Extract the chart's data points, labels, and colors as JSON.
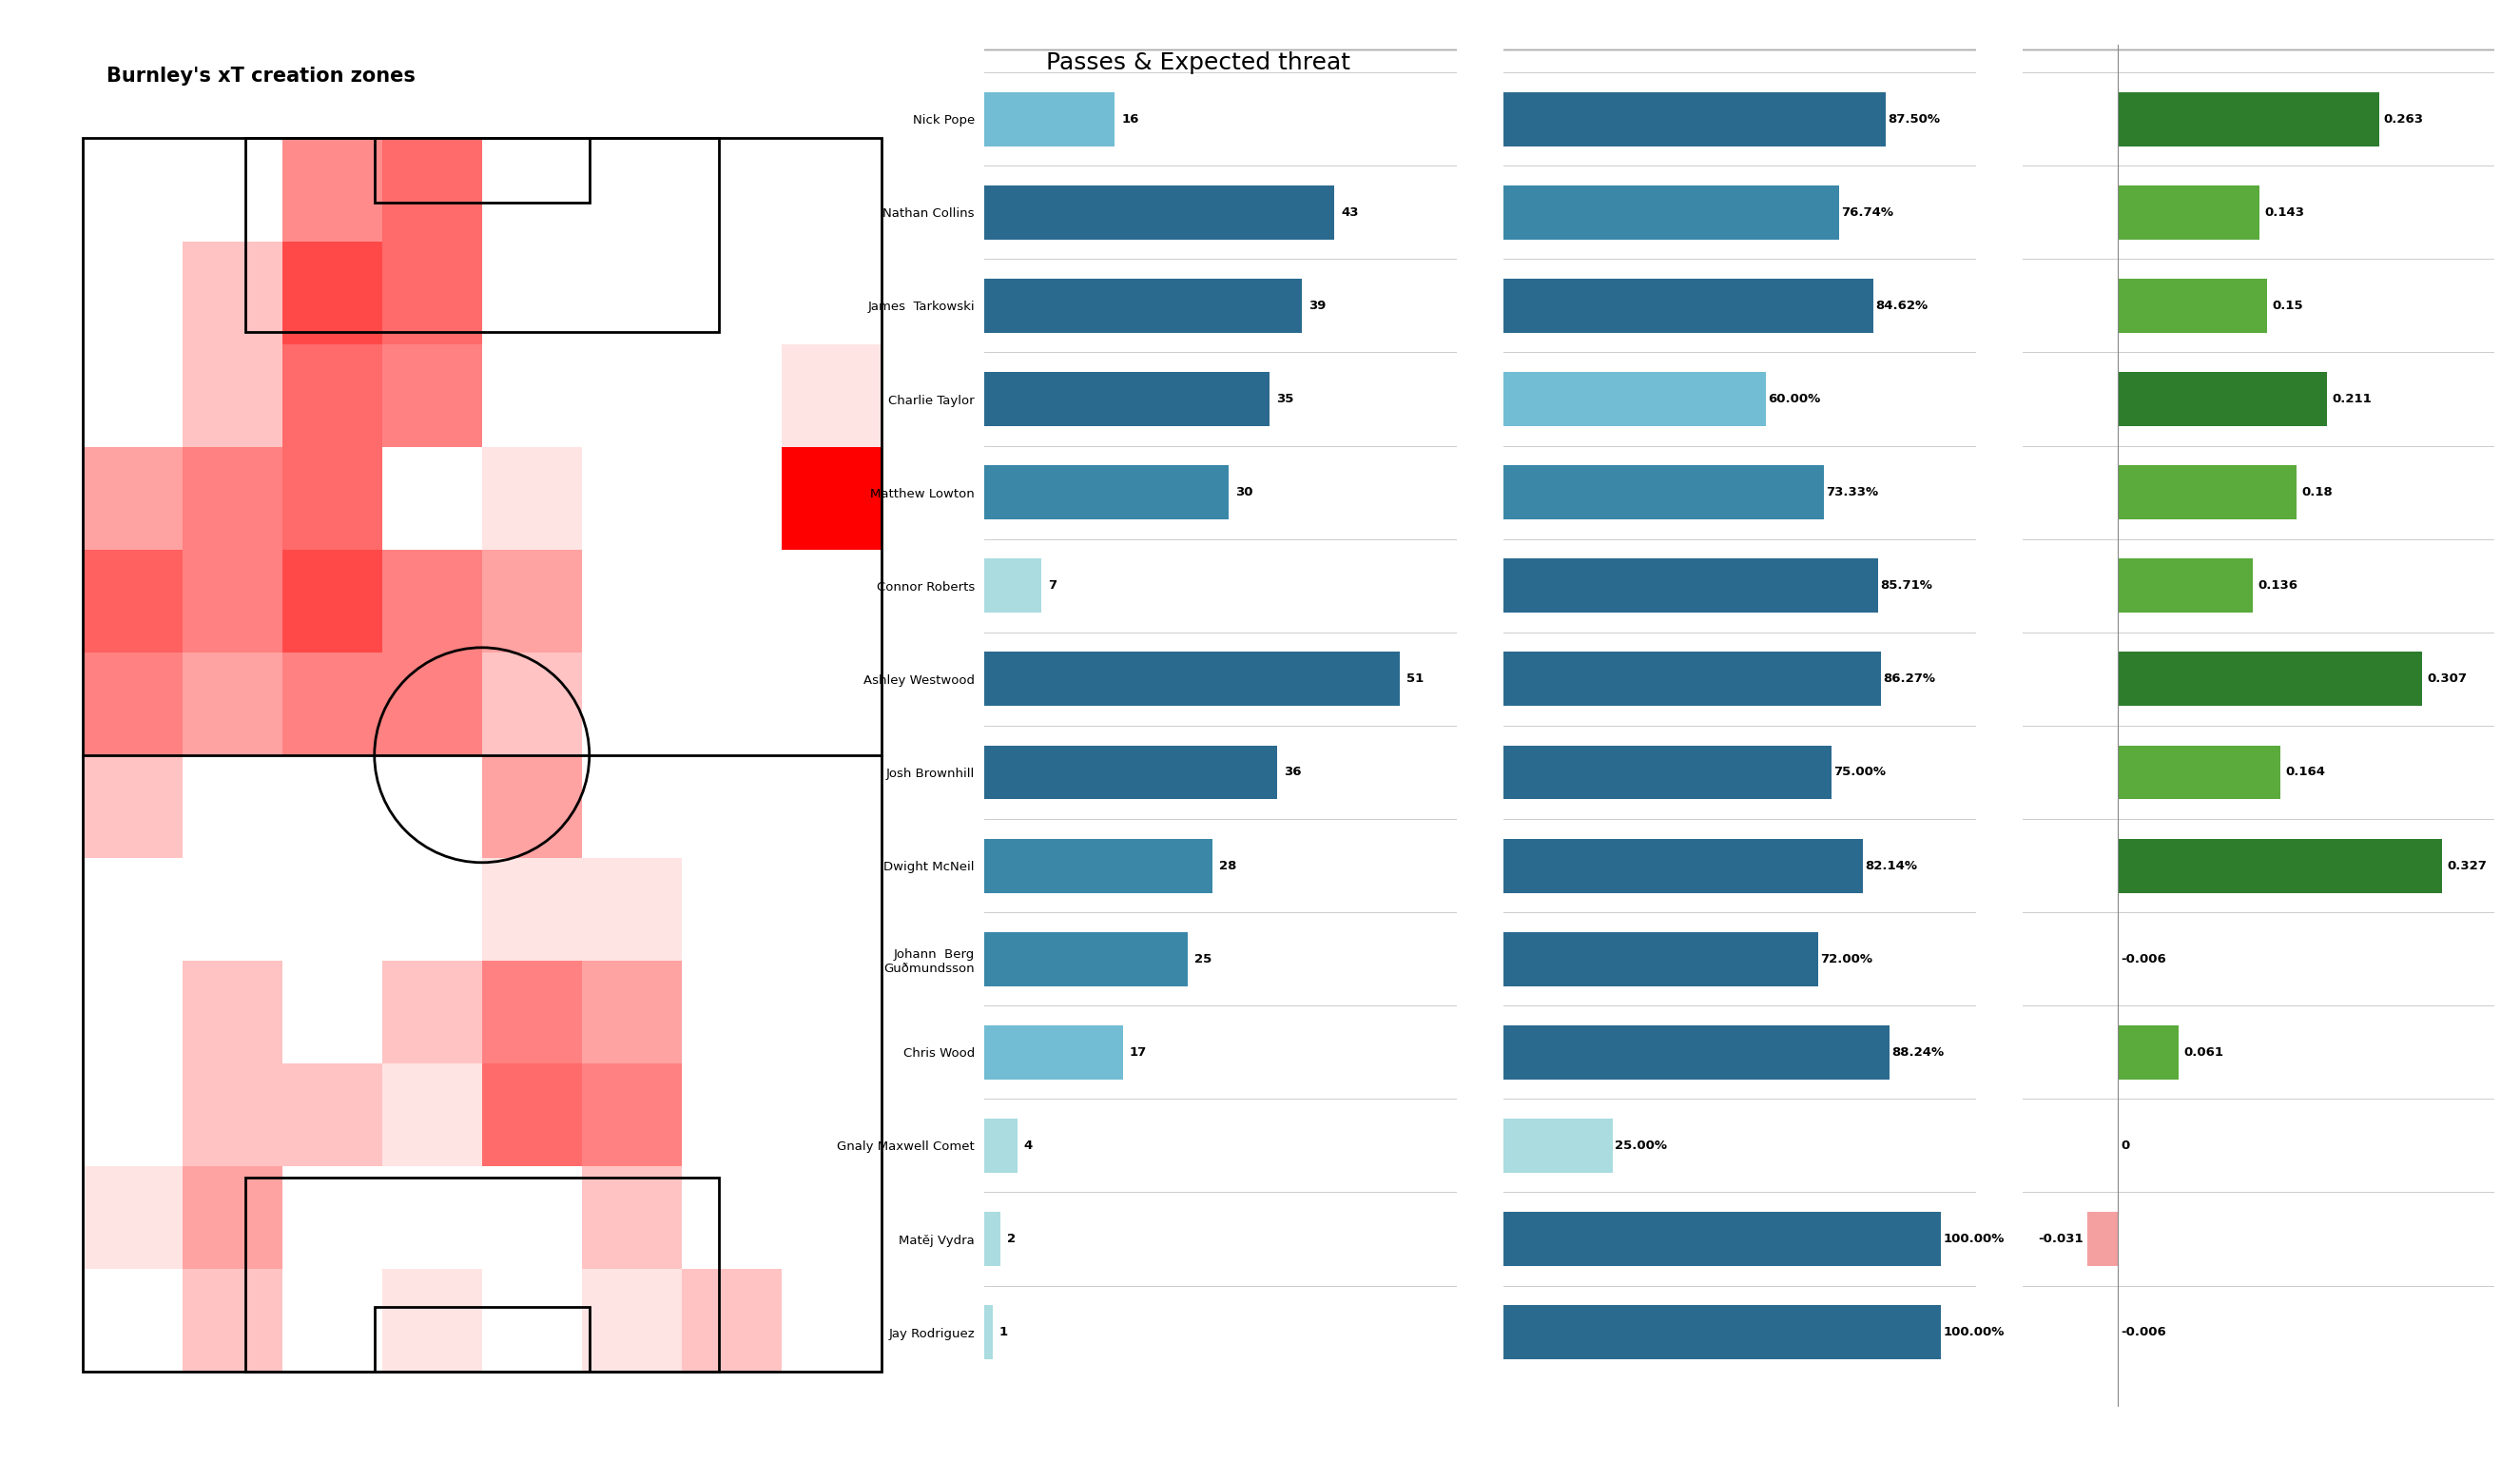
{
  "title_heatmap": "Burnley's xT creation zones",
  "title_bars": "Passes & Expected threat",
  "players": [
    "Nick Pope",
    "Nathan Collins",
    "James  Tarkowski",
    "Charlie Taylor",
    "Matthew Lowton",
    "Connor Roberts",
    "Ashley Westwood",
    "Josh Brownhill",
    "Dwight McNeil",
    "Johann  Berg\nGuðmundsson",
    "Chris Wood",
    "Gnaly Maxwell Comet",
    "Matěj Vydra",
    "Jay Rodriguez"
  ],
  "passes": [
    16,
    43,
    39,
    35,
    30,
    7,
    51,
    36,
    28,
    25,
    17,
    4,
    2,
    1
  ],
  "pass_accuracy": [
    87.5,
    76.74,
    84.62,
    60.0,
    73.33,
    85.71,
    86.27,
    75.0,
    82.14,
    72.0,
    88.24,
    25.0,
    100.0,
    100.0
  ],
  "total_passes_xt": [
    0.263,
    0.143,
    0.15,
    0.211,
    0.18,
    0.136,
    0.307,
    0.164,
    0.327,
    -0.006,
    0.061,
    0,
    -0.031,
    -0.006
  ],
  "passes_colors": [
    "#72bcd4",
    "#2b6a8f",
    "#2b6a8f",
    "#2b6a8f",
    "#3a87a8",
    "#aadce0",
    "#2b6a8f",
    "#2b6a8f",
    "#3a87a8",
    "#3a87a8",
    "#72bcd4",
    "#aadce0",
    "#aadce0",
    "#aadce0"
  ],
  "accuracy_colors": [
    "#2b6a8f",
    "#3a87a8",
    "#2b6a8f",
    "#72bcd4",
    "#3a87a8",
    "#2b6a8f",
    "#2b6a8f",
    "#2b6a8f",
    "#2b6a8f",
    "#2b6a8f",
    "#2b6a8f",
    "#aadce0",
    "#2b6a8f",
    "#2b6a8f"
  ],
  "xt_colors": [
    "#2d7d2d",
    "#5aaa3c",
    "#5aaa3c",
    "#2d7d2d",
    "#5aaa3c",
    "#5aaa3c",
    "#2d7d2d",
    "#5aaa3c",
    "#2d7d2d",
    null,
    "#5aaa3c",
    "#aadce0",
    "#f4a0a0",
    null
  ],
  "heatmap_grid": [
    [
      0.0,
      0.0,
      0.35,
      0.45,
      0.0,
      0.0,
      0.0,
      0.0
    ],
    [
      0.0,
      0.18,
      0.55,
      0.45,
      0.0,
      0.0,
      0.0,
      0.0
    ],
    [
      0.0,
      0.18,
      0.45,
      0.38,
      0.0,
      0.0,
      0.0,
      0.08
    ],
    [
      0.28,
      0.38,
      0.45,
      0.0,
      0.08,
      0.0,
      0.0,
      0.85
    ],
    [
      0.48,
      0.38,
      0.55,
      0.38,
      0.28,
      0.0,
      0.0,
      0.0
    ],
    [
      0.38,
      0.28,
      0.38,
      0.38,
      0.18,
      0.0,
      0.0,
      0.0
    ],
    [
      0.18,
      0.0,
      0.0,
      0.0,
      0.28,
      0.0,
      0.0,
      0.0
    ],
    [
      0.0,
      0.0,
      0.0,
      0.0,
      0.08,
      0.08,
      0.0,
      0.0
    ],
    [
      0.0,
      0.18,
      0.0,
      0.18,
      0.38,
      0.28,
      0.0,
      0.0
    ],
    [
      0.0,
      0.18,
      0.18,
      0.08,
      0.45,
      0.38,
      0.0,
      0.0
    ],
    [
      0.08,
      0.28,
      0.0,
      0.0,
      0.0,
      0.18,
      0.0,
      0.0
    ],
    [
      0.0,
      0.18,
      0.0,
      0.08,
      0.0,
      0.08,
      0.18,
      0.0
    ]
  ],
  "bg_color": "#ffffff"
}
